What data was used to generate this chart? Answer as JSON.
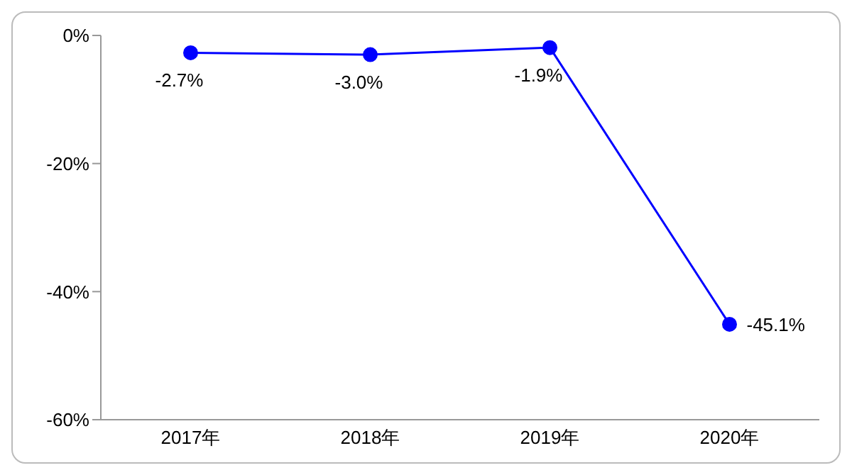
{
  "chart_data": {
    "type": "line",
    "categories": [
      "2017年",
      "2018年",
      "2019年",
      "2020年"
    ],
    "series": [
      {
        "color": "#0000ff",
        "values": [
          -2.7,
          -3.0,
          -1.9,
          -45.1
        ],
        "value_labels": [
          "-2.7%",
          "-3.0%",
          "-1.9%",
          "-45.1%"
        ]
      }
    ],
    "ylim": [
      -60,
      0
    ],
    "yticks": [
      {
        "value": 0,
        "label": "0%"
      },
      {
        "value": -20,
        "label": "-20%"
      },
      {
        "value": -40,
        "label": "-40%"
      },
      {
        "value": -60,
        "label": "-60%"
      }
    ],
    "grid": false,
    "legend": false,
    "marker": "circle",
    "line_style": "solid"
  }
}
